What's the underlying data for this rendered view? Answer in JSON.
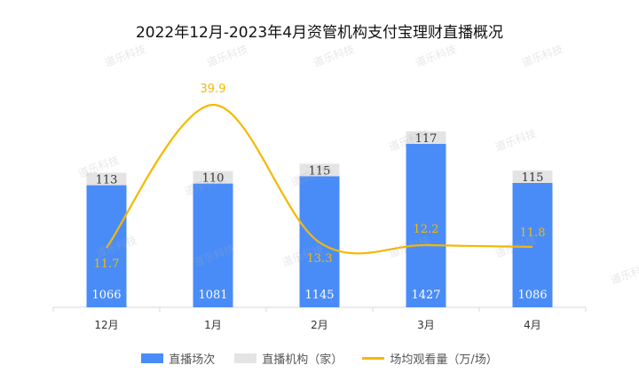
{
  "title": "2022年12月-2023年4月资管机构支付宝理财直播概况",
  "watermark": "道乐科技",
  "colors": {
    "bar_sessions": "#4a8cf7",
    "bar_institutions": "#e4e4e4",
    "line_views": "#f5b800"
  },
  "legend": [
    {
      "label": "直播场次",
      "type": "box",
      "color": "#4a8cf7"
    },
    {
      "label": "直播机构（家）",
      "type": "box",
      "color": "#e4e4e4"
    },
    {
      "label": "场均观看量（万/场）",
      "type": "line",
      "color": "#f5b800"
    }
  ],
  "chart_data": {
    "type": "bar",
    "title": "2022年12月-2023年4月资管机构支付宝理财直播概况",
    "categories": [
      "12月",
      "1月",
      "2月",
      "3月",
      "4月"
    ],
    "series": [
      {
        "name": "直播场次",
        "type": "stacked-bar",
        "values": [
          1066,
          1081,
          1145,
          1427,
          1086
        ]
      },
      {
        "name": "直播机构（家）",
        "type": "stacked-bar",
        "values": [
          113,
          110,
          115,
          117,
          115
        ]
      },
      {
        "name": "场均观看量（万/场）",
        "type": "line",
        "smooth": true,
        "values": [
          11.7,
          39.9,
          13.3,
          12.2,
          11.8
        ]
      }
    ],
    "xlabel": "",
    "ylabel": "",
    "grid": false,
    "legend_position": "bottom"
  }
}
